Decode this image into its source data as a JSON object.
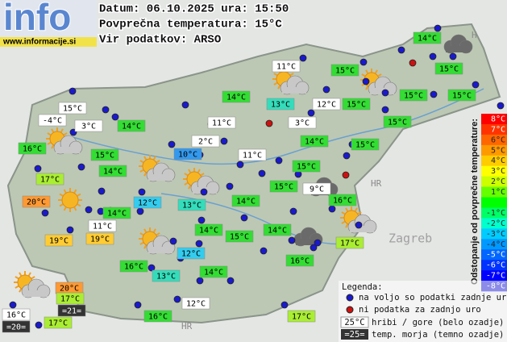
{
  "header": {
    "logo": "info",
    "site": "www.informacije.si",
    "date_line": "Datum: 06.10.2025 ura: 15:50",
    "avg_line": "Povprečna temperatura: 15°C",
    "source_line": "Vir podatkov: ARSO"
  },
  "map_labels": [
    "HR",
    "Zagreb",
    "H",
    "HR"
  ],
  "stations": [
    {
      "label": "14°C",
      "color": "#33dd33"
    },
    {
      "label": "11°C",
      "color": "#ffffff"
    },
    {
      "label": "15°C",
      "color": "#33dd33"
    },
    {
      "label": "15°C",
      "color": "#33dd33"
    },
    {
      "label": "14°C",
      "color": "#33dd33"
    },
    {
      "label": "13°C",
      "color": "#33ddbb"
    },
    {
      "label": "12°C",
      "color": "#ffffff"
    },
    {
      "label": "15°C",
      "color": "#33dd33"
    },
    {
      "label": "15°C",
      "color": "#33dd33"
    },
    {
      "label": "15°C",
      "color": "#33dd33"
    },
    {
      "label": "15°C",
      "color": "#ffffff"
    },
    {
      "label": "-4°C",
      "color": "#ffffff"
    },
    {
      "label": "3°C",
      "color": "#ffffff"
    },
    {
      "label": "14°C",
      "color": "#33dd33"
    },
    {
      "label": "11°C",
      "color": "#ffffff"
    },
    {
      "label": "3°C",
      "color": "#ffffff"
    },
    {
      "label": "15°C",
      "color": "#33dd33"
    },
    {
      "label": "16°C",
      "color": "#33dd33"
    },
    {
      "label": "2°C",
      "color": "#ffffff"
    },
    {
      "label": "14°C",
      "color": "#33dd33"
    },
    {
      "label": "15°C",
      "color": "#33dd33"
    },
    {
      "label": "10°C",
      "color": "#3399ee"
    },
    {
      "label": "11°C",
      "color": "#ffffff"
    },
    {
      "label": "15°C",
      "color": "#33dd33"
    },
    {
      "label": "14°C",
      "color": "#33dd33"
    },
    {
      "label": "15°C",
      "color": "#33dd33"
    },
    {
      "label": "17°C",
      "color": "#aaee33"
    },
    {
      "label": "9°C",
      "color": "#ffffff"
    },
    {
      "label": "12°C",
      "color": "#33ccee"
    },
    {
      "label": "15°C",
      "color": "#33dd33"
    },
    {
      "label": "13°C",
      "color": "#33ddbb"
    },
    {
      "label": "16°C",
      "color": "#33dd33"
    },
    {
      "label": "20°C",
      "color": "#ff9933"
    },
    {
      "label": "14°C",
      "color": "#33dd33"
    },
    {
      "label": "14°C",
      "color": "#33dd33"
    },
    {
      "label": "11°C",
      "color": "#ffffff"
    },
    {
      "label": "19°C",
      "color": "#ffcc33"
    },
    {
      "label": "19°C",
      "color": "#ffcc33"
    },
    {
      "label": "14°C",
      "color": "#33dd33"
    },
    {
      "label": "15°C",
      "color": "#33dd33"
    },
    {
      "label": "14°C",
      "color": "#33dd33"
    },
    {
      "label": "17°C",
      "color": "#aaee33"
    },
    {
      "label": "12°C",
      "color": "#33ccee"
    },
    {
      "label": "16°C",
      "color": "#33dd33"
    },
    {
      "label": "13°C",
      "color": "#33ddbb"
    },
    {
      "label": "14°C",
      "color": "#33dd33"
    },
    {
      "label": "16°C",
      "color": "#33dd33"
    },
    {
      "label": "20°C",
      "color": "#ff9933"
    },
    {
      "label": "17°C",
      "color": "#aaee33"
    },
    {
      "label": "=21=",
      "color": "#333333"
    },
    {
      "label": "16°C",
      "color": "#ffffff"
    },
    {
      "label": "=20=",
      "color": "#333333"
    },
    {
      "label": "17°C",
      "color": "#aaee33"
    },
    {
      "label": "12°C",
      "color": "#ffffff"
    },
    {
      "label": "16°C",
      "color": "#33dd33"
    },
    {
      "label": "17°C",
      "color": "#aaee33"
    }
  ],
  "scale": {
    "title": "Odstopanje od povprečne temperature:",
    "entries": [
      {
        "label": "8°C",
        "color": "#ff0000"
      },
      {
        "label": "7°C",
        "color": "#ff3300"
      },
      {
        "label": "6°C",
        "color": "#ff6600"
      },
      {
        "label": "5°C",
        "color": "#ff9900"
      },
      {
        "label": "4°C",
        "color": "#ffcc00"
      },
      {
        "label": "3°C",
        "color": "#ffff00"
      },
      {
        "label": "2°C",
        "color": "#ccff00"
      },
      {
        "label": "1°C",
        "color": "#66ff00"
      },
      {
        "label": null,
        "color": "#00ff00"
      },
      {
        "label": "-1°C",
        "color": "#00ff66"
      },
      {
        "label": "-2°C",
        "color": "#00ffcc"
      },
      {
        "label": "-3°C",
        "color": "#00ccff"
      },
      {
        "label": "-4°C",
        "color": "#0099ff"
      },
      {
        "label": "-5°C",
        "color": "#0066ff"
      },
      {
        "label": "-6°C",
        "color": "#0033ff"
      },
      {
        "label": "-7°C",
        "color": "#0000ff"
      },
      {
        "label": "-8°C",
        "color": "#0000cc"
      }
    ]
  },
  "legend": {
    "title": "Legenda:",
    "available": "na voljo so podatki zadnje ure",
    "missing": "ni podatka za zadnjo uro",
    "mountain_sample": "25°C",
    "mountain_text": "hribi / gore (belo ozadje)",
    "sea_sample": "=25=",
    "sea_text": "temp. morja (temno ozadje)"
  }
}
